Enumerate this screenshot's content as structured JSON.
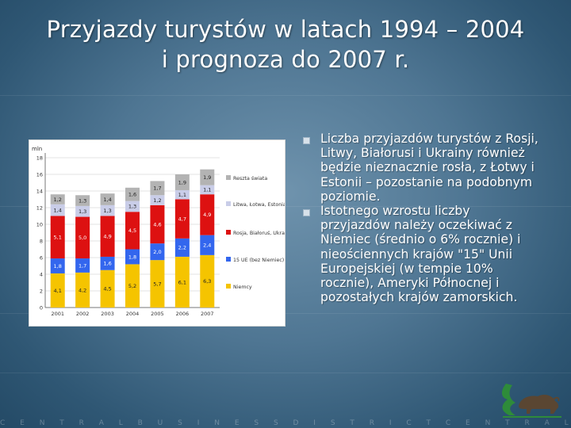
{
  "slide": {
    "title_line1": "Przyjazdy turystów w latach 1994 – 2004",
    "title_line2": "i prognoza do 2007 r.",
    "bullets": [
      "Liczba przyjazdów turystów z Rosji, Litwy, Białorusi i Ukrainy również będzie nieznacznie rosła, z Łotwy i Estonii – pozostanie na podobnym poziomie.",
      "Istotnego wzrostu liczby przyjazdów należy oczekiwać z Niemiec (średnio o 6% rocznie) i nieościennych krajów \"15\" Unii Europejskiej (w tempie 10% rocznie), Ameryki Północnej i pozostałych krajów zamorskich."
    ],
    "footer_text": "C E N T R A L B U S I N E S S D I S T R I C T C E N T R A L B U S I N E S S D I S T R I C T C E N T R",
    "colors": {
      "accent": "#ffffff",
      "bullet": "#d7e1ea"
    }
  },
  "chart_data": {
    "type": "bar",
    "stacked": true,
    "ylabel": "mln",
    "ylim": [
      0,
      18
    ],
    "yticks": [
      0,
      2,
      4,
      6,
      8,
      10,
      12,
      14,
      16,
      18
    ],
    "categories": [
      "2001",
      "2002",
      "2003",
      "2004",
      "2005",
      "2006",
      "2007"
    ],
    "series": [
      {
        "name": "Niemcy",
        "color": "#f5c400",
        "values": [
          4.1,
          4.2,
          4.5,
          5.2,
          5.7,
          6.1,
          6.3
        ]
      },
      {
        "name": "15 UE (bez Niemiec)",
        "color": "#3366ee",
        "values": [
          1.8,
          1.7,
          1.6,
          1.8,
          2.0,
          2.2,
          2.4
        ]
      },
      {
        "name": "Rosja, Białoruś, Ukraina",
        "color": "#dd1111",
        "values": [
          5.1,
          5.0,
          4.9,
          4.5,
          4.6,
          4.7,
          4.9
        ]
      },
      {
        "name": "Litwa, Łotwa, Estonia",
        "color": "#c9cde8",
        "values": [
          1.4,
          1.3,
          1.3,
          1.3,
          1.2,
          1.1,
          1.1
        ]
      },
      {
        "name": "Reszta świata",
        "color": "#b3b3b3",
        "values": [
          1.2,
          1.3,
          1.4,
          1.6,
          1.7,
          1.9,
          1.9
        ]
      }
    ],
    "labels": [
      [
        "4,1",
        "4,2",
        "4,5",
        "5,2",
        "5,7",
        "6,1",
        "6,3"
      ],
      [
        "1,8",
        "1,7",
        "1,6",
        "1,8",
        "2,0",
        "2,2",
        "2,4"
      ],
      [
        "5,1",
        "5,0",
        "4,9",
        "4,5",
        "4,6",
        "4,7",
        "4,9"
      ],
      [
        "1,4",
        "1,3",
        "1,3",
        "1,3",
        "1,2",
        "1,1",
        "1,1"
      ],
      [
        "1,2",
        "1,3",
        "1,4",
        "1,6",
        "1,7",
        "1,9",
        "1,9"
      ]
    ],
    "legend_order": [
      4,
      3,
      2,
      1,
      0
    ],
    "legend_position": "right",
    "grid": true
  }
}
